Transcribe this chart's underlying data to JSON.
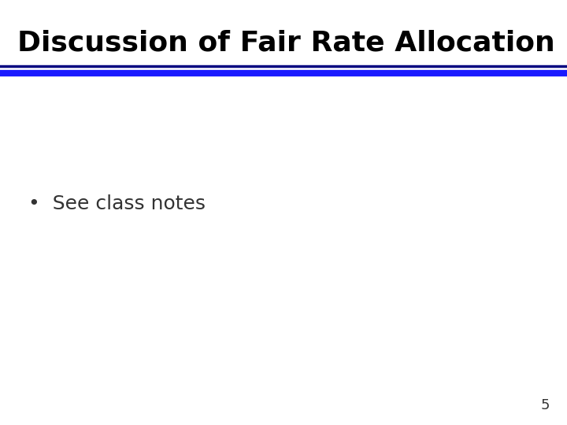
{
  "title": "Discussion of Fair Rate Allocation",
  "title_color": "#000000",
  "title_fontsize": 26,
  "title_fontweight": "bold",
  "title_font": "Arial",
  "line_color_dark": "#000080",
  "line_color_blue": "#1a1aff",
  "bullet_text": "•  See class notes",
  "bullet_fontsize": 18,
  "bullet_color": "#333333",
  "page_number": "5",
  "page_number_fontsize": 13,
  "page_number_color": "#333333",
  "background_color": "#ffffff",
  "line_thickness_dark": 2.5,
  "line_thickness_blue": 6
}
